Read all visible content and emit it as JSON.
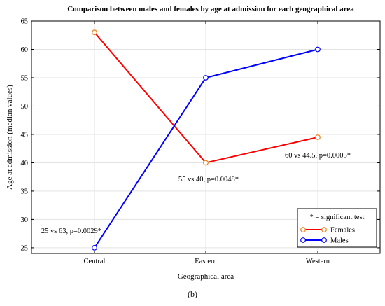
{
  "chart_data": {
    "type": "line",
    "title": "Comparison between males and females by age at admission for each geographical area",
    "xlabel": "Geographical area",
    "ylabel": "Age at admission (median values)",
    "categories": [
      "Central",
      "Eastern",
      "Western"
    ],
    "ylim": [
      24,
      65
    ],
    "yticks": [
      25,
      30,
      35,
      40,
      45,
      50,
      55,
      60,
      65
    ],
    "grid": true,
    "legend_position": "bottom-right",
    "legend_title": "* = significant test",
    "series": [
      {
        "name": "Females",
        "values": [
          63,
          40,
          44.5
        ],
        "color": "#ff0000",
        "marker_color": "#f5821f"
      },
      {
        "name": "Males",
        "values": [
          25,
          55,
          60
        ],
        "color": "#0000ff",
        "marker_color": "#0000ff"
      }
    ],
    "annotations": [
      {
        "text": "25 vs 63, p=0.0029*",
        "category": "Central"
      },
      {
        "text": "55 vs 40, p=0.0048*",
        "category": "Eastern"
      },
      {
        "text": "60 vs 44.5, p=0.0005*",
        "category": "Western"
      }
    ]
  },
  "caption": "(b)"
}
